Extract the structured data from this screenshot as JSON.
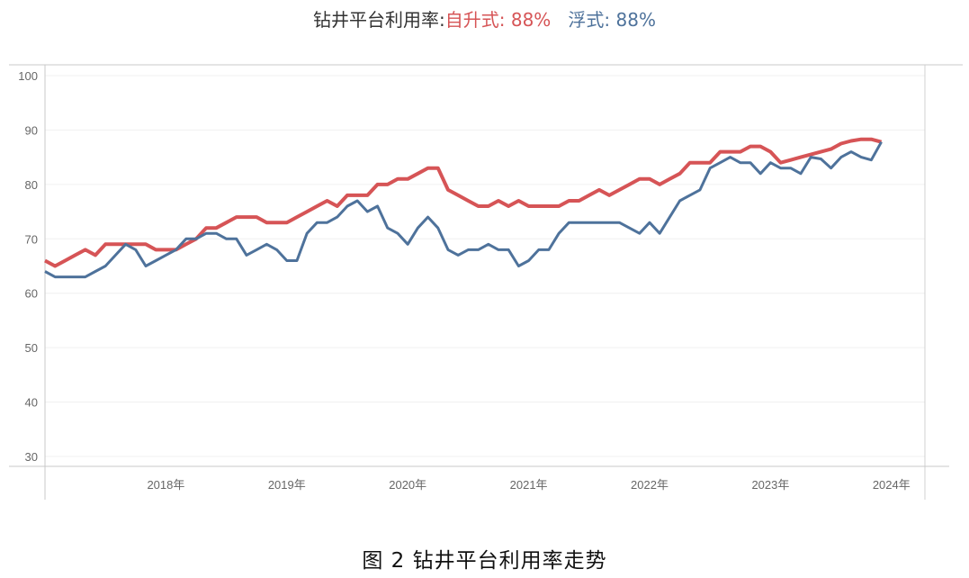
{
  "title": {
    "prefix": "钻井平台利用率:",
    "jackup": "自升式: 88%",
    "floater": "浮式: 88%"
  },
  "caption": "图 2  钻井平台利用率走势",
  "colors": {
    "jackup": "#d65456",
    "floater": "#4e729b"
  },
  "chart_data": {
    "type": "line",
    "x_start": "2017-01",
    "x_frequency": "monthly",
    "xlim": [
      "2017-01",
      "2024-04"
    ],
    "x_tick_labels": [
      "2018年",
      "2019年",
      "2020年",
      "2021年",
      "2022年",
      "2023年",
      "2024年"
    ],
    "ylim": [
      30,
      100
    ],
    "y_ticks": [
      30,
      40,
      50,
      60,
      70,
      80,
      90,
      100
    ],
    "grid": true,
    "series": [
      {
        "name": "自升式",
        "color": "#d65456",
        "values": [
          66,
          65,
          66,
          67,
          68,
          67,
          69,
          69,
          69,
          69,
          69,
          68,
          68,
          68,
          69,
          70,
          72,
          72,
          73,
          74,
          74,
          74,
          73,
          73,
          73,
          74,
          75,
          76,
          77,
          76,
          78,
          78,
          78,
          80,
          80,
          81,
          81,
          82,
          83,
          83,
          79,
          78,
          77,
          76,
          76,
          77,
          76,
          77,
          76,
          76,
          76,
          76,
          77,
          77,
          78,
          79,
          78,
          79,
          80,
          81,
          81,
          80,
          81,
          82,
          84,
          84,
          84,
          86,
          86,
          86,
          87,
          87,
          86,
          84,
          84.5,
          85,
          85.5,
          86,
          86.5,
          87.5,
          88,
          88.3,
          88.3,
          87.8
        ]
      },
      {
        "name": "浮式",
        "color": "#4e729b",
        "values": [
          64,
          63,
          63,
          63,
          63,
          64,
          65,
          67,
          69,
          68,
          65,
          66,
          67,
          68,
          70,
          70,
          71,
          71,
          70,
          70,
          67,
          68,
          69,
          68,
          66,
          66,
          71,
          73,
          73,
          74,
          76,
          77,
          75,
          76,
          72,
          71,
          69,
          72,
          74,
          72,
          68,
          67,
          68,
          68,
          69,
          68,
          68,
          65,
          66,
          68,
          68,
          71,
          73,
          73,
          73,
          73,
          73,
          73,
          72,
          71,
          73,
          71,
          74,
          77,
          78,
          79,
          83,
          84,
          85,
          84,
          84,
          82,
          84,
          83,
          83,
          82,
          85,
          84.7,
          83,
          85,
          86,
          85,
          84.5,
          87.8
        ]
      }
    ]
  }
}
